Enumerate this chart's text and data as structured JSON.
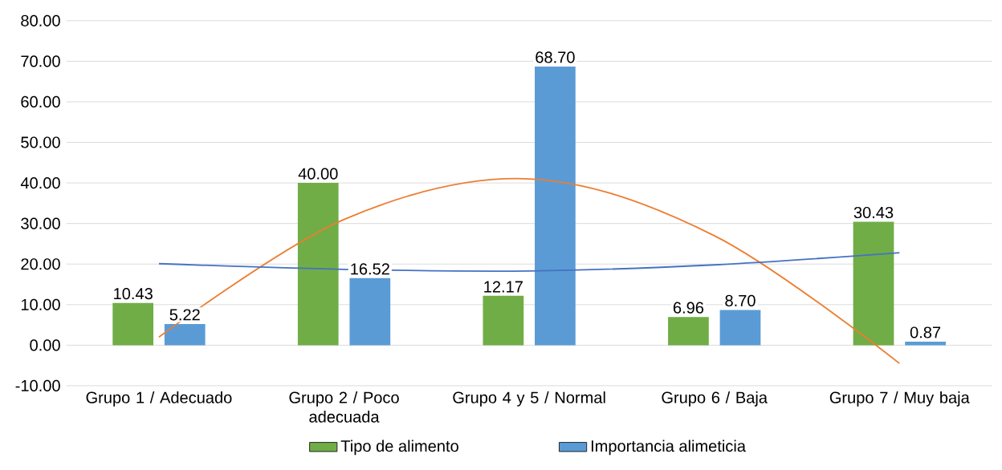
{
  "chart_data": {
    "type": "bar",
    "categories": [
      "Grupo 1  / Adecuado",
      "Grupo 2  / Poco adecuada",
      "Grupo 4 y 5  / Normal",
      "Grupo 6  / Baja",
      "Grupo 7  / Muy baja"
    ],
    "series": [
      {
        "name": "Tipo de alimento",
        "color": "#70ad47",
        "values": [
          10.43,
          40.0,
          12.17,
          6.96,
          30.43
        ],
        "value_labels": [
          "10.43",
          "40.00",
          "12.17",
          "6.96",
          "30.43"
        ]
      },
      {
        "name": "Importancia alimeticia",
        "color": "#5b9bd5",
        "values": [
          5.22,
          16.52,
          68.7,
          8.7,
          0.87
        ],
        "value_labels": [
          "5.22",
          "16.52",
          "68.70",
          "8.70",
          "0.87"
        ]
      },
      {
        "type": "line",
        "color": "#ed7d31",
        "values": [
          2,
          31,
          41,
          27,
          -4.5
        ]
      },
      {
        "type": "line",
        "color": "#4472c4",
        "values": [
          20.1,
          18.7,
          18.3,
          19.8,
          22.8
        ]
      }
    ],
    "ylim": [
      -10,
      80
    ],
    "yticks": [
      {
        "value": -10,
        "label": "-10.00"
      },
      {
        "value": 0,
        "label": "0.00"
      },
      {
        "value": 10,
        "label": "10.00"
      },
      {
        "value": 20,
        "label": "20.00"
      },
      {
        "value": 30,
        "label": "30.00"
      },
      {
        "value": 40,
        "label": "40.00"
      },
      {
        "value": 50,
        "label": "50.00"
      },
      {
        "value": 60,
        "label": "60.00"
      },
      {
        "value": 70,
        "label": "70.00"
      },
      {
        "value": 80,
        "label": "80.00"
      }
    ],
    "grid": "y",
    "legend": "bottom"
  }
}
